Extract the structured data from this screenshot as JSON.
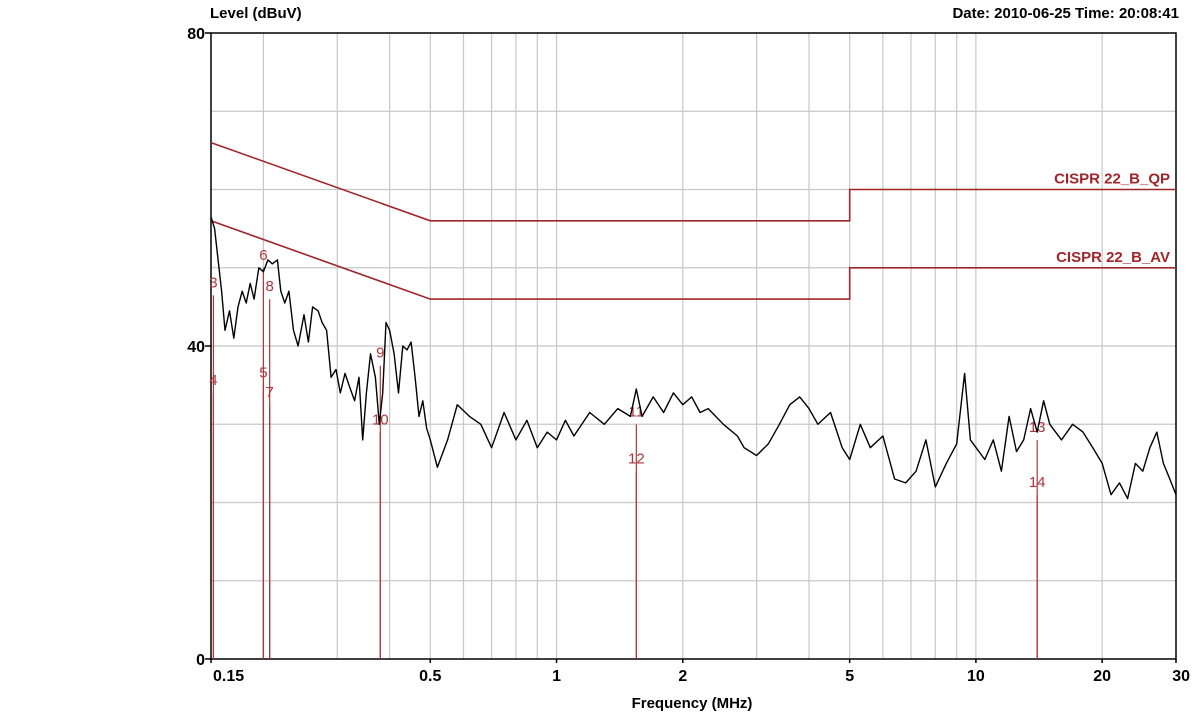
{
  "header": {
    "ylabel": "Level (dBuV)",
    "date_time": "Date: 2010-06-25  Time: 20:08:41"
  },
  "chart_data": {
    "type": "line",
    "xlabel": "Frequency (MHz)",
    "ylabel": "Level (dBuV)",
    "x_scale": "log",
    "xlim": [
      0.15,
      30
    ],
    "ylim": [
      0,
      80
    ],
    "grid": true,
    "x_ticks": [
      {
        "value": 0.15,
        "label": "0.15"
      },
      {
        "value": 0.5,
        "label": "0.5"
      },
      {
        "value": 1,
        "label": "1"
      },
      {
        "value": 2,
        "label": "2"
      },
      {
        "value": 5,
        "label": "5"
      },
      {
        "value": 10,
        "label": "10"
      },
      {
        "value": 20,
        "label": "20"
      },
      {
        "value": 30,
        "label": "30"
      }
    ],
    "y_ticks": [
      {
        "value": 0,
        "label": "0"
      },
      {
        "value": 40,
        "label": "40"
      },
      {
        "value": 80,
        "label": "80"
      }
    ],
    "colors": {
      "trace": "#000000",
      "limit": "#a0262b",
      "marker": "#b0353a",
      "grid": "#c8c8c8"
    },
    "limits": [
      {
        "name": "CISPR 22_B_QP",
        "points": [
          [
            0.15,
            66
          ],
          [
            0.5,
            56
          ],
          [
            5,
            56
          ],
          [
            5,
            60
          ],
          [
            30,
            60
          ]
        ]
      },
      {
        "name": "CISPR 22_B_AV",
        "points": [
          [
            0.15,
            56
          ],
          [
            0.5,
            46
          ],
          [
            5,
            46
          ],
          [
            5,
            50
          ],
          [
            30,
            50
          ]
        ]
      }
    ],
    "trace": {
      "points": [
        [
          0.15,
          56.5
        ],
        [
          0.153,
          55.0
        ],
        [
          0.156,
          51.0
        ],
        [
          0.159,
          47.0
        ],
        [
          0.162,
          42.0
        ],
        [
          0.166,
          44.5
        ],
        [
          0.17,
          41.0
        ],
        [
          0.174,
          45.0
        ],
        [
          0.178,
          47.0
        ],
        [
          0.182,
          45.5
        ],
        [
          0.186,
          48.0
        ],
        [
          0.19,
          46.0
        ],
        [
          0.195,
          50.0
        ],
        [
          0.2,
          49.5
        ],
        [
          0.205,
          51.0
        ],
        [
          0.21,
          50.5
        ],
        [
          0.216,
          51.0
        ],
        [
          0.22,
          47.0
        ],
        [
          0.225,
          45.5
        ],
        [
          0.23,
          47.0
        ],
        [
          0.236,
          42.0
        ],
        [
          0.242,
          40.0
        ],
        [
          0.25,
          44.0
        ],
        [
          0.256,
          40.5
        ],
        [
          0.262,
          45.0
        ],
        [
          0.27,
          44.5
        ],
        [
          0.276,
          43.0
        ],
        [
          0.283,
          42.0
        ],
        [
          0.29,
          36.0
        ],
        [
          0.298,
          37.0
        ],
        [
          0.305,
          34.0
        ],
        [
          0.313,
          36.5
        ],
        [
          0.32,
          35.0
        ],
        [
          0.33,
          33.0
        ],
        [
          0.338,
          36.0
        ],
        [
          0.345,
          28.0
        ],
        [
          0.352,
          34.0
        ],
        [
          0.36,
          39.0
        ],
        [
          0.37,
          36.0
        ],
        [
          0.378,
          30.0
        ],
        [
          0.385,
          34.0
        ],
        [
          0.392,
          43.0
        ],
        [
          0.4,
          42.0
        ],
        [
          0.41,
          39.0
        ],
        [
          0.42,
          34.0
        ],
        [
          0.43,
          40.0
        ],
        [
          0.44,
          39.5
        ],
        [
          0.45,
          40.5
        ],
        [
          0.46,
          36.0
        ],
        [
          0.47,
          31.0
        ],
        [
          0.48,
          33.0
        ],
        [
          0.49,
          29.5
        ],
        [
          0.5,
          28.0
        ],
        [
          0.52,
          24.5
        ],
        [
          0.55,
          28.0
        ],
        [
          0.58,
          32.5
        ],
        [
          0.62,
          31.0
        ],
        [
          0.66,
          30.0
        ],
        [
          0.7,
          27.0
        ],
        [
          0.75,
          31.5
        ],
        [
          0.8,
          28.0
        ],
        [
          0.85,
          30.5
        ],
        [
          0.9,
          27.0
        ],
        [
          0.95,
          29.0
        ],
        [
          1.0,
          28.0
        ],
        [
          1.05,
          30.5
        ],
        [
          1.1,
          28.5
        ],
        [
          1.2,
          31.5
        ],
        [
          1.3,
          30.0
        ],
        [
          1.4,
          32.0
        ],
        [
          1.5,
          31.0
        ],
        [
          1.55,
          34.5
        ],
        [
          1.6,
          31.0
        ],
        [
          1.7,
          33.5
        ],
        [
          1.8,
          31.5
        ],
        [
          1.9,
          34.0
        ],
        [
          2.0,
          32.5
        ],
        [
          2.1,
          33.5
        ],
        [
          2.2,
          31.5
        ],
        [
          2.3,
          32.0
        ],
        [
          2.5,
          30.0
        ],
        [
          2.7,
          28.5
        ],
        [
          2.8,
          27.0
        ],
        [
          3.0,
          26.0
        ],
        [
          3.2,
          27.5
        ],
        [
          3.4,
          30.0
        ],
        [
          3.6,
          32.5
        ],
        [
          3.8,
          33.5
        ],
        [
          4.0,
          32.0
        ],
        [
          4.2,
          30.0
        ],
        [
          4.5,
          31.5
        ],
        [
          4.8,
          27.0
        ],
        [
          5.0,
          25.5
        ],
        [
          5.3,
          30.0
        ],
        [
          5.6,
          27.0
        ],
        [
          6.0,
          28.5
        ],
        [
          6.4,
          23.0
        ],
        [
          6.8,
          22.5
        ],
        [
          7.2,
          24.0
        ],
        [
          7.6,
          28.0
        ],
        [
          8.0,
          22.0
        ],
        [
          8.5,
          25.0
        ],
        [
          9.0,
          27.5
        ],
        [
          9.4,
          36.5
        ],
        [
          9.7,
          28.0
        ],
        [
          10.5,
          25.5
        ],
        [
          11.0,
          28.0
        ],
        [
          11.5,
          24.0
        ],
        [
          12.0,
          31.0
        ],
        [
          12.5,
          26.5
        ],
        [
          13.0,
          28.0
        ],
        [
          13.5,
          32.0
        ],
        [
          14.0,
          29.0
        ],
        [
          14.5,
          33.0
        ],
        [
          15.0,
          30.0
        ],
        [
          16.0,
          28.0
        ],
        [
          17.0,
          30.0
        ],
        [
          18.0,
          29.0
        ],
        [
          19.0,
          27.0
        ],
        [
          20.0,
          25.0
        ],
        [
          21.0,
          21.0
        ],
        [
          22.0,
          22.5
        ],
        [
          23.0,
          20.5
        ],
        [
          24.0,
          25.0
        ],
        [
          25.0,
          24.0
        ],
        [
          26.0,
          27.0
        ],
        [
          27.0,
          29.0
        ],
        [
          28.0,
          25.0
        ],
        [
          29.0,
          23.0
        ],
        [
          30.0,
          21.0
        ]
      ]
    },
    "markers": [
      {
        "label": "3",
        "x": 0.152,
        "y": 47.5
      },
      {
        "label": "4",
        "x": 0.152,
        "y": 35.0
      },
      {
        "label": "6",
        "x": 0.2,
        "y": 51.0
      },
      {
        "label": "5",
        "x": 0.2,
        "y": 36.0
      },
      {
        "label": "8",
        "x": 0.207,
        "y": 47.0
      },
      {
        "label": "7",
        "x": 0.207,
        "y": 33.5
      },
      {
        "label": "9",
        "x": 0.38,
        "y": 38.5
      },
      {
        "label": "10",
        "x": 0.38,
        "y": 30.0
      },
      {
        "label": "11",
        "x": 1.55,
        "y": 31.0
      },
      {
        "label": "12",
        "x": 1.55,
        "y": 25.0
      },
      {
        "label": "13",
        "x": 14.0,
        "y": 29.0
      },
      {
        "label": "14",
        "x": 14.0,
        "y": 22.0
      }
    ]
  }
}
